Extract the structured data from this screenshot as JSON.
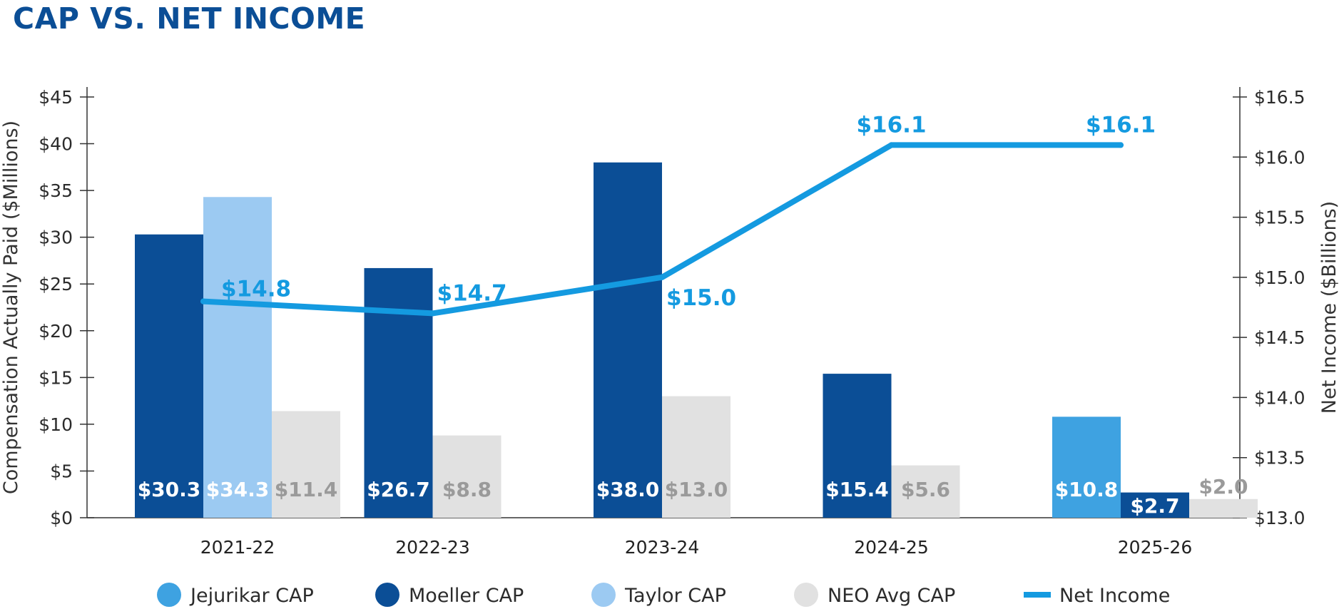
{
  "title": "CAP VS. NET INCOME",
  "colors": {
    "title": "#0b4e96",
    "jejurikar": "#3ea2e1",
    "moeller": "#0b4e96",
    "taylor": "#9ccaf2",
    "neo": "#e1e1e1",
    "net_income": "#149ae0",
    "neo_label": "#9a9a9a"
  },
  "chart_data": {
    "type": "bar",
    "categories": [
      "2021-22",
      "2022-23",
      "2023-24",
      "2024-25",
      "2025-26"
    ],
    "ylabel": "Compensation Actually Paid ($Millions)",
    "ylim": [
      0,
      45
    ],
    "yticks": [
      "$0",
      "$5",
      "$10",
      "$15",
      "$20",
      "$25",
      "$30",
      "$35",
      "$40",
      "$45"
    ],
    "y2label": "Net Income ($Billions)",
    "y2lim": [
      13.0,
      16.5
    ],
    "y2ticks": [
      "$13.0",
      "$13.5",
      "$14.0",
      "$14.5",
      "$15.0",
      "$15.5",
      "$16.0",
      "$16.5"
    ],
    "series": [
      {
        "name": "Jejurikar CAP",
        "key": "jejurikar",
        "values": [
          null,
          null,
          null,
          null,
          10.8
        ],
        "labels": [
          null,
          null,
          null,
          null,
          "$10.8"
        ]
      },
      {
        "name": "Moeller CAP",
        "key": "moeller",
        "values": [
          30.3,
          26.7,
          38.0,
          15.4,
          2.7
        ],
        "labels": [
          "$30.3",
          "$26.7",
          "$38.0",
          "$15.4",
          "$2.7"
        ]
      },
      {
        "name": "Taylor CAP",
        "key": "taylor",
        "values": [
          34.3,
          null,
          null,
          null,
          null
        ],
        "labels": [
          "$34.3",
          null,
          null,
          null,
          null
        ]
      },
      {
        "name": "NEO Avg CAP",
        "key": "neo",
        "values": [
          11.4,
          8.8,
          13.0,
          5.6,
          2.0
        ],
        "labels": [
          "$11.4",
          "$8.8",
          "$13.0",
          "$5.6",
          "$2.0"
        ]
      }
    ],
    "line": {
      "name": "Net Income",
      "axis": "right",
      "values": [
        14.8,
        14.7,
        15.0,
        16.1,
        16.1
      ],
      "labels": [
        "$14.8",
        "$14.7",
        "$15.0",
        "$16.1",
        "$16.1"
      ]
    },
    "legend": {
      "position": "bottom",
      "items": [
        "Jejurikar CAP",
        "Moeller CAP",
        "Taylor CAP",
        "NEO Avg CAP",
        "Net Income"
      ]
    }
  }
}
